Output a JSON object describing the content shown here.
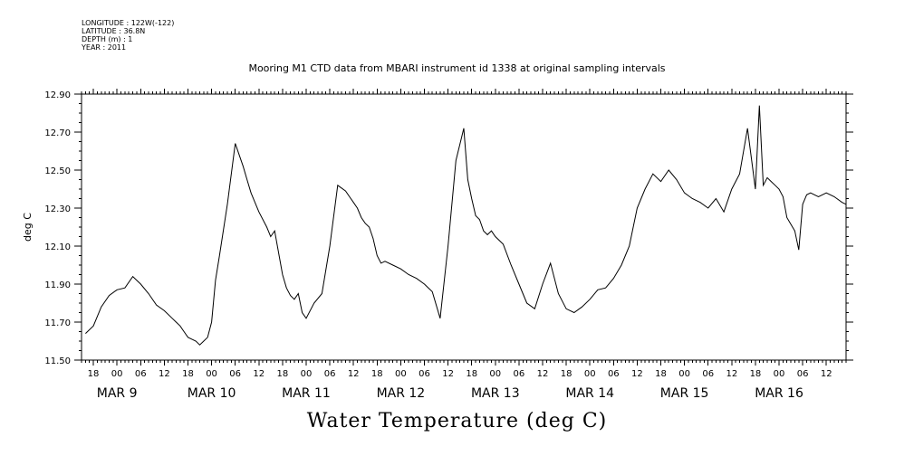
{
  "meta_lines": [
    "LONGITUDE : 122W(-122)",
    "LATITUDE : 36.8N",
    "DEPTH (m) : 1",
    "YEAR : 2011"
  ],
  "header_title": "Mooring M1 CTD data from MBARI instrument id 1338 at original sampling intervals",
  "chart_data": {
    "type": "line",
    "title": "Water Temperature (deg C)",
    "ylabel": "deg C",
    "xlabel": "",
    "ylim": [
      11.5,
      12.9
    ],
    "xlim": [
      "2011-03-08T15:00",
      "2011-03-16T17:00"
    ],
    "yticks": [
      "11.50",
      "11.70",
      "11.90",
      "12.10",
      "12.30",
      "12.50",
      "12.70",
      "12.90"
    ],
    "hour_tick_labels": [
      "18",
      "00",
      "06",
      "12",
      "18",
      "00",
      "06",
      "12",
      "18",
      "00",
      "06",
      "12",
      "18",
      "00",
      "06",
      "12",
      "18",
      "00",
      "06",
      "12",
      "18",
      "00",
      "06",
      "12",
      "18",
      "00",
      "06",
      "12",
      "18",
      "00",
      "06",
      "12"
    ],
    "day_labels": [
      "MAR  9",
      "MAR 10",
      "MAR 11",
      "MAR 12",
      "MAR 13",
      "MAR 14",
      "MAR 15",
      "MAR 16"
    ],
    "grid": false,
    "series": [
      {
        "x": [
          "2011-03-08T16:00",
          "2011-03-08T18:00",
          "2011-03-08T20:00",
          "2011-03-08T22:00",
          "2011-03-09T00:00",
          "2011-03-09T02:00",
          "2011-03-09T04:00",
          "2011-03-09T06:00",
          "2011-03-09T08:00",
          "2011-03-09T10:00",
          "2011-03-09T12:00",
          "2011-03-09T14:00",
          "2011-03-09T15:00",
          "2011-03-09T16:00",
          "2011-03-09T17:00",
          "2011-03-09T18:00",
          "2011-03-09T19:00",
          "2011-03-09T20:00",
          "2011-03-09T21:00",
          "2011-03-09T22:00",
          "2011-03-09T23:00",
          "2011-03-10T00:00",
          "2011-03-10T01:00",
          "2011-03-10T02:00",
          "2011-03-10T04:00",
          "2011-03-10T06:00",
          "2011-03-10T08:00",
          "2011-03-10T09:00",
          "2011-03-10T10:00",
          "2011-03-10T12:00",
          "2011-03-10T14:00",
          "2011-03-10T15:00",
          "2011-03-10T16:00",
          "2011-03-10T18:00",
          "2011-03-10T19:00",
          "2011-03-10T20:00",
          "2011-03-10T21:00",
          "2011-03-10T22:00",
          "2011-03-10T23:00",
          "2011-03-11T00:00",
          "2011-03-11T02:00",
          "2011-03-11T04:00",
          "2011-03-11T06:00",
          "2011-03-11T08:00",
          "2011-03-11T10:00",
          "2011-03-11T11:00",
          "2011-03-11T12:00",
          "2011-03-11T13:00",
          "2011-03-11T14:00",
          "2011-03-11T15:00",
          "2011-03-11T16:00",
          "2011-03-11T17:00",
          "2011-03-11T18:00",
          "2011-03-11T19:00",
          "2011-03-11T20:00",
          "2011-03-11T22:00",
          "2011-03-12T00:00",
          "2011-03-12T02:00",
          "2011-03-12T04:00",
          "2011-03-12T06:00",
          "2011-03-12T08:00",
          "2011-03-12T10:00",
          "2011-03-12T12:00",
          "2011-03-12T14:00",
          "2011-03-12T16:00",
          "2011-03-12T17:00",
          "2011-03-12T18:00",
          "2011-03-12T19:00",
          "2011-03-12T20:00",
          "2011-03-12T21:00",
          "2011-03-12T22:00",
          "2011-03-12T23:00",
          "2011-03-13T00:00",
          "2011-03-13T02:00",
          "2011-03-13T04:00",
          "2011-03-13T06:00",
          "2011-03-13T08:00",
          "2011-03-13T10:00",
          "2011-03-13T12:00",
          "2011-03-13T14:00",
          "2011-03-13T16:00",
          "2011-03-13T18:00",
          "2011-03-13T20:00",
          "2011-03-13T22:00",
          "2011-03-14T00:00",
          "2011-03-14T02:00",
          "2011-03-14T04:00",
          "2011-03-14T06:00",
          "2011-03-14T08:00",
          "2011-03-14T10:00",
          "2011-03-14T12:00",
          "2011-03-14T14:00",
          "2011-03-14T16:00",
          "2011-03-14T18:00",
          "2011-03-14T20:00",
          "2011-03-14T22:00",
          "2011-03-15T00:00",
          "2011-03-15T02:00",
          "2011-03-15T04:00",
          "2011-03-15T06:00",
          "2011-03-15T08:00",
          "2011-03-15T10:00",
          "2011-03-15T12:00",
          "2011-03-15T14:00",
          "2011-03-15T16:00",
          "2011-03-15T18:00",
          "2011-03-15T19:00",
          "2011-03-15T20:00",
          "2011-03-15T21:00",
          "2011-03-15T22:00",
          "2011-03-15T23:00",
          "2011-03-16T00:00",
          "2011-03-16T01:00",
          "2011-03-16T02:00",
          "2011-03-16T04:00",
          "2011-03-16T05:00",
          "2011-03-16T06:00",
          "2011-03-16T07:00",
          "2011-03-16T08:00",
          "2011-03-16T10:00",
          "2011-03-16T12:00",
          "2011-03-16T14:00",
          "2011-03-16T16:00",
          "2011-03-16T17:00"
        ],
        "values": [
          11.64,
          11.68,
          11.78,
          11.84,
          11.87,
          11.88,
          11.94,
          11.9,
          11.85,
          11.79,
          11.76,
          11.72,
          11.7,
          11.68,
          11.65,
          11.62,
          11.61,
          11.6,
          11.58,
          11.6,
          11.62,
          11.7,
          11.92,
          12.05,
          12.32,
          12.64,
          12.52,
          12.45,
          12.38,
          12.28,
          12.2,
          12.15,
          12.18,
          11.95,
          11.88,
          11.84,
          11.82,
          11.85,
          11.75,
          11.72,
          11.8,
          11.85,
          12.1,
          12.42,
          12.39,
          12.36,
          12.33,
          12.3,
          12.25,
          12.22,
          12.2,
          12.14,
          12.05,
          12.01,
          12.02,
          12.0,
          11.98,
          11.95,
          11.93,
          11.9,
          11.86,
          11.72,
          12.1,
          12.55,
          12.72,
          12.45,
          12.35,
          12.26,
          12.24,
          12.18,
          12.16,
          12.18,
          12.15,
          12.11,
          12.0,
          11.9,
          11.8,
          11.77,
          11.9,
          12.01,
          11.85,
          11.77,
          11.75,
          11.78,
          11.82,
          11.87,
          11.88,
          11.93,
          12.0,
          12.1,
          12.3,
          12.4,
          12.48,
          12.44,
          12.5,
          12.45,
          12.38,
          12.35,
          12.33,
          12.3,
          12.35,
          12.28,
          12.4,
          12.48,
          12.72,
          12.4,
          12.84,
          12.42,
          12.46,
          12.44,
          12.42,
          12.4,
          12.36,
          12.25,
          12.18,
          12.08,
          12.32,
          12.37,
          12.38,
          12.36,
          12.38,
          12.36,
          12.33,
          12.32
        ]
      }
    ]
  }
}
